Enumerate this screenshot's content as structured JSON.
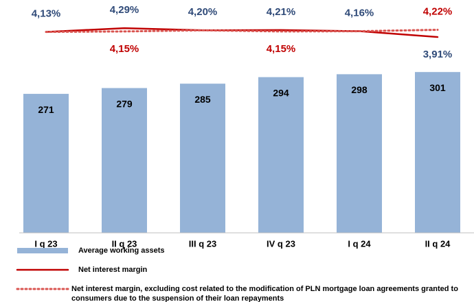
{
  "chart_data": {
    "type": "bar",
    "categories": [
      "I q 23",
      "II q 23",
      "III q 23",
      "IV q 23",
      "I q 24",
      "II q 24"
    ],
    "ylim": [
      80,
      400
    ],
    "y2lim": [
      -4.5,
      5.5
    ],
    "series": [
      {
        "name": "Average working assets",
        "type": "bar",
        "color": "#95b3d7",
        "label_color": "#000000",
        "values": [
          271,
          279,
          285,
          294,
          298,
          301
        ]
      },
      {
        "name": "Net interest margin",
        "type": "line",
        "axis": "y2",
        "line_style": "solid",
        "color": "#c00000",
        "label_color": "#2f4a78",
        "values": [
          4.13,
          4.29,
          4.2,
          4.21,
          4.16,
          3.91
        ],
        "value_labels": [
          "4,13%",
          "4,29%",
          "4,20%",
          "4,21%",
          "4,16%",
          "3,91%"
        ]
      },
      {
        "name": "Net interest margin, excluding cost related to the modification of PLN mortgage loan agreements granted to consumers due to the suspension of their loan repayments",
        "type": "line",
        "axis": "y2",
        "line_style": "dotted",
        "color": "#d9534f",
        "label_color": "#c00000",
        "values": [
          4.13,
          4.15,
          4.2,
          4.15,
          4.16,
          4.22
        ],
        "value_labels": [
          null,
          "4,15%",
          null,
          "4,15%",
          null,
          "4,22%"
        ]
      }
    ]
  }
}
